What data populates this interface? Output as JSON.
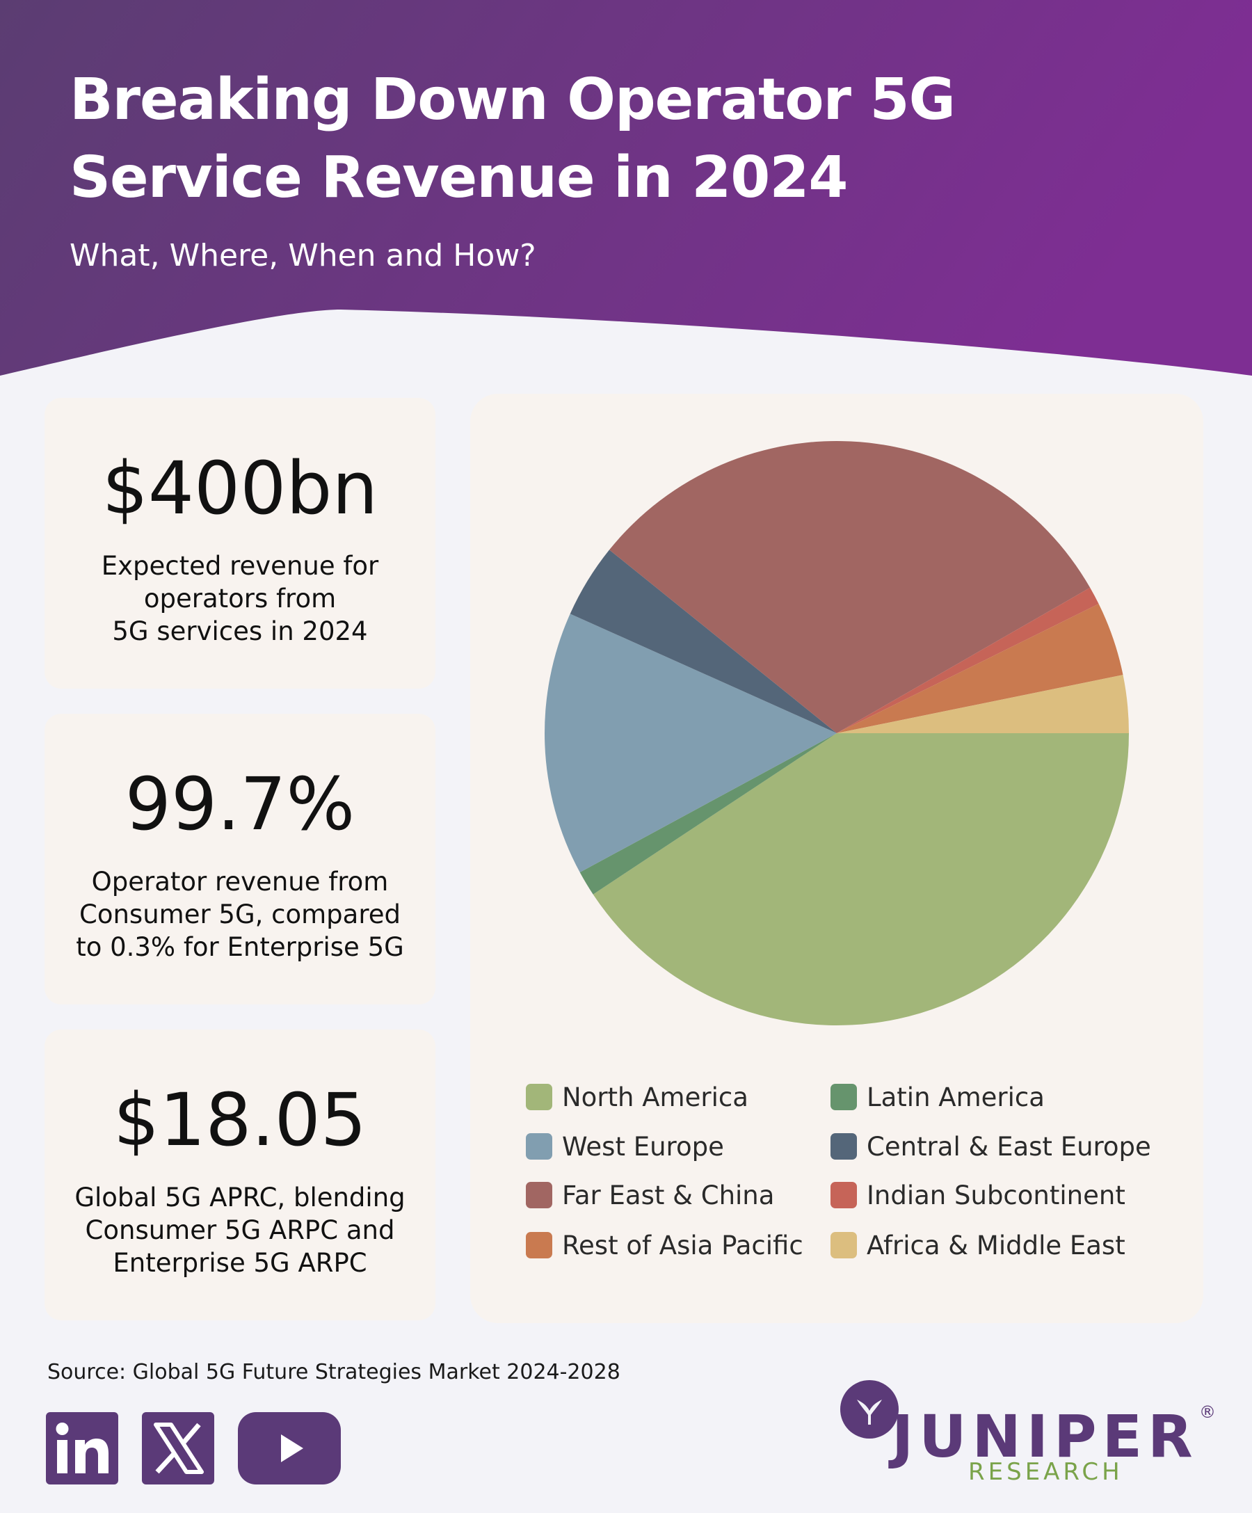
{
  "header": {
    "title_line1": "Breaking Down Operator 5G",
    "title_line2": "Service Revenue in 2024",
    "subtitle": "What, Where, When and How?"
  },
  "stats": [
    {
      "value": "$400bn",
      "desc_lines": [
        "Expected revenue for",
        "operators from",
        "5G services in 2024"
      ]
    },
    {
      "value": "99.7%",
      "desc_lines": [
        "Operator revenue from",
        "Consumer 5G, compared",
        "to 0.3% for Enterprise 5G"
      ]
    },
    {
      "value": "$18.05",
      "desc_lines": [
        "Global 5G APRC, blending",
        "Consumer 5G ARPC and",
        "Enterprise 5G ARPC"
      ]
    }
  ],
  "chart_data": {
    "type": "pie",
    "unit": "share of 2024 operator 5G service revenue (%)",
    "slices": [
      {
        "name": "North America",
        "value": 40.7,
        "color": "#a2b679"
      },
      {
        "name": "Latin America",
        "value": 1.4,
        "color": "#66946d"
      },
      {
        "name": "West Europe",
        "value": 14.6,
        "color": "#819eb0"
      },
      {
        "name": "Central & East Europe",
        "value": 4.1,
        "color": "#546679"
      },
      {
        "name": "Far East & China",
        "value": 30.9,
        "color": "#a16662"
      },
      {
        "name": "Indian Subcontinent",
        "value": 1.0,
        "color": "#c66458"
      },
      {
        "name": "Rest of Asia Pacific",
        "value": 4.1,
        "color": "#c97a50"
      },
      {
        "name": "Africa & Middle East",
        "value": 3.2,
        "color": "#dcbe7f"
      }
    ],
    "legend": {
      "position": "bottom",
      "columns": [
        [
          "North America",
          "West Europe",
          "Far East & China",
          "Rest of Asia Pacific"
        ],
        [
          "Latin America",
          "Central & East Europe",
          "Indian Subcontinent",
          "Africa & Middle East"
        ]
      ]
    }
  },
  "footer": {
    "source": "Source: Global 5G Future Strategies Market 2024-2028",
    "social_icons": [
      "linkedin-icon",
      "x-icon",
      "youtube-icon"
    ],
    "logo_name": "JUNIPER",
    "logo_sub": "RESEARCH",
    "logo_reg": "®"
  },
  "colors": {
    "header_gradient_start": "#5b3d72",
    "header_gradient_end": "#7e2e93",
    "card_bg": "#f8f3ef",
    "page_bg": "#f3f3f8",
    "brand_purple": "#5b3a78",
    "brand_green": "#7aa34a"
  }
}
